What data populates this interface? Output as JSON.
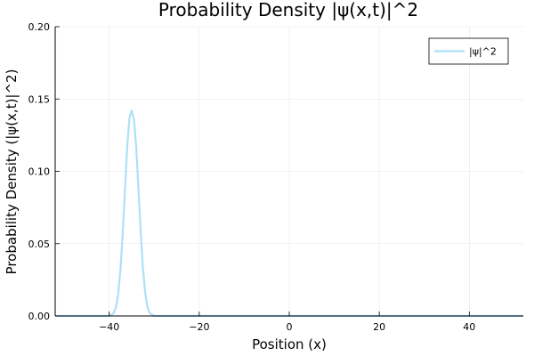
{
  "chart_data": {
    "type": "line",
    "title": "Probability Density |ψ(x,t)|^2",
    "xlabel": "Position (x)",
    "ylabel": "Probability Density (|ψ(x,t)|^2)",
    "xlim": [
      -52,
      52
    ],
    "ylim": [
      0,
      0.2
    ],
    "xticks": [
      -40,
      -20,
      0,
      20,
      40
    ],
    "xtick_labels": [
      "−40",
      "−20",
      "0",
      "20",
      "40"
    ],
    "yticks": [
      0,
      0.05,
      0.1,
      0.15,
      0.2
    ],
    "ytick_labels": [
      "0.00",
      "0.05",
      "0.10",
      "0.15",
      "0.20"
    ],
    "grid": true,
    "legend_position": "top-right",
    "series": [
      {
        "name": "|ψ|^2",
        "color": "#aee0f7",
        "x": [
          -52,
          -50,
          -48,
          -46,
          -44,
          -42,
          -40,
          -39,
          -38.5,
          -38,
          -37.5,
          -37,
          -36.5,
          -36,
          -35.5,
          -35,
          -34.5,
          -34,
          -33.5,
          -33,
          -32.5,
          -32,
          -31.5,
          -31,
          -30,
          -28,
          -26,
          -24,
          -22,
          -20,
          -18,
          -16,
          -14,
          -12,
          -10,
          -8,
          -6,
          -4,
          -2,
          0,
          2,
          4,
          6,
          8,
          10,
          12,
          14,
          16,
          18,
          20,
          22,
          24,
          26,
          28,
          30,
          32,
          34,
          36,
          38,
          40,
          42,
          44,
          46,
          48,
          50,
          52
        ],
        "y": [
          0,
          0,
          0,
          0,
          0,
          0,
          0,
          0.002,
          0.006,
          0.015,
          0.032,
          0.057,
          0.087,
          0.117,
          0.137,
          0.142,
          0.136,
          0.117,
          0.088,
          0.058,
          0.033,
          0.016,
          0.006,
          0.002,
          0,
          0,
          0,
          0,
          0,
          0,
          0,
          0,
          0,
          0,
          0,
          0,
          0,
          0,
          0,
          0,
          0,
          0,
          0,
          0,
          0,
          0,
          0,
          0,
          0,
          0,
          0,
          0,
          0,
          0,
          0,
          0,
          0,
          0,
          0,
          0,
          0,
          0,
          0,
          0,
          0,
          0
        ]
      }
    ]
  }
}
